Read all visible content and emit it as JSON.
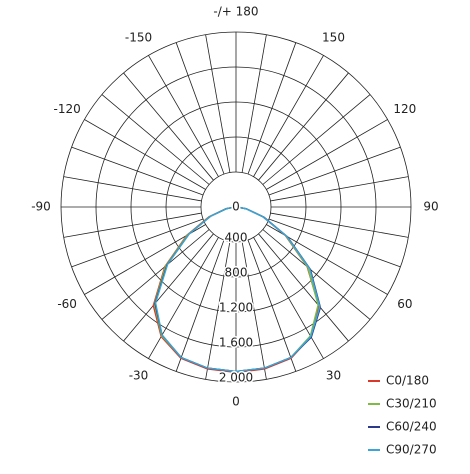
{
  "chart_data": {
    "type": "polar",
    "rlim": [
      0,
      2000
    ],
    "rticks": [
      0,
      400,
      800,
      {
        "value": 1200,
        "label": "1 200"
      },
      {
        "value": 1600,
        "label": "1 600"
      },
      {
        "value": 2000,
        "label": "2 000"
      }
    ],
    "aticks": [
      {
        "value": 180,
        "label": "-/+ 180"
      },
      150,
      -150,
      120,
      -120,
      90,
      -90,
      60,
      -60,
      30,
      -30,
      0
    ],
    "agrid": [
      -170,
      -160,
      -150,
      -140,
      -130,
      -120,
      -110,
      -100,
      -90,
      -80,
      -70,
      -60,
      -50,
      -40,
      -30,
      -20,
      -10,
      0,
      10,
      20,
      30,
      40,
      50,
      60,
      70,
      80,
      90,
      100,
      110,
      120,
      130,
      140,
      150,
      160,
      170,
      180
    ],
    "angles": [
      -90,
      -80,
      -70,
      -60,
      -50,
      -40,
      -30,
      -20,
      -10,
      0,
      10,
      20,
      30,
      40,
      50,
      60,
      70,
      80,
      90
    ],
    "series": [
      {
        "name": "C0/180",
        "color": "#d9382b",
        "values": [
          10,
          120,
          330,
          650,
          1060,
          1470,
          1710,
          1840,
          1880,
          1890,
          1880,
          1840,
          1710,
          1470,
          1060,
          650,
          330,
          120,
          10
        ]
      },
      {
        "name": "C30/210",
        "color": "#7fba45",
        "values": [
          10,
          115,
          320,
          640,
          1050,
          1450,
          1700,
          1830,
          1870,
          1880,
          1870,
          1830,
          1700,
          1460,
          1070,
          660,
          340,
          120,
          10
        ]
      },
      {
        "name": "C60/240",
        "color": "#2d3a8a",
        "values": [
          10,
          110,
          310,
          620,
          1030,
          1440,
          1690,
          1830,
          1870,
          1880,
          1870,
          1830,
          1720,
          1500,
          1110,
          680,
          340,
          120,
          10
        ]
      },
      {
        "name": "C90/270",
        "color": "#3aa5d6",
        "values": [
          10,
          110,
          310,
          620,
          1020,
          1430,
          1690,
          1830,
          1870,
          1880,
          1870,
          1830,
          1710,
          1490,
          1100,
          670,
          330,
          115,
          10
        ]
      }
    ]
  }
}
